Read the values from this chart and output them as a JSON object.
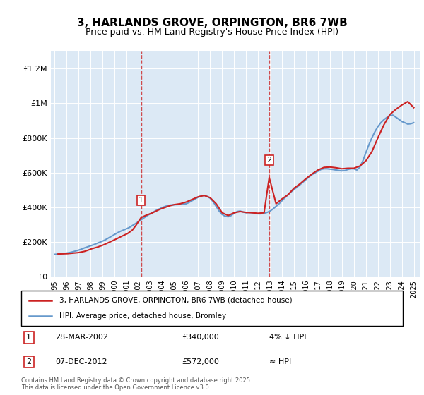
{
  "title": "3, HARLANDS GROVE, ORPINGTON, BR6 7WB",
  "subtitle": "Price paid vs. HM Land Registry's House Price Index (HPI)",
  "ylabel_ticks": [
    "£0",
    "£200K",
    "£400K",
    "£600K",
    "£800K",
    "£1M",
    "£1.2M"
  ],
  "ytick_values": [
    0,
    200000,
    400000,
    600000,
    800000,
    1000000,
    1200000
  ],
  "ylim": [
    0,
    1300000
  ],
  "xlim_start": 1995,
  "xlim_end": 2025.5,
  "background_color": "#dce9f5",
  "plot_bg_color": "#dce9f5",
  "hpi_color": "#6699cc",
  "price_color": "#cc2222",
  "marker1_x": 2002.23,
  "marker1_y": 340000,
  "marker2_x": 2012.93,
  "marker2_y": 572000,
  "legend_price_label": "3, HARLANDS GROVE, ORPINGTON, BR6 7WB (detached house)",
  "legend_hpi_label": "HPI: Average price, detached house, Bromley",
  "table_data": [
    {
      "num": "1",
      "date": "28-MAR-2002",
      "price": "£340,000",
      "note": "4% ↓ HPI"
    },
    {
      "num": "2",
      "date": "07-DEC-2012",
      "price": "£572,000",
      "note": "≈ HPI"
    }
  ],
  "footer": "Contains HM Land Registry data © Crown copyright and database right 2025.\nThis data is licensed under the Open Government Licence v3.0.",
  "hpi_data_x": [
    1995.0,
    1995.25,
    1995.5,
    1995.75,
    1996.0,
    1996.25,
    1996.5,
    1996.75,
    1997.0,
    1997.25,
    1997.5,
    1997.75,
    1998.0,
    1998.25,
    1998.5,
    1998.75,
    1999.0,
    1999.25,
    1999.5,
    1999.75,
    2000.0,
    2000.25,
    2000.5,
    2000.75,
    2001.0,
    2001.25,
    2001.5,
    2001.75,
    2002.0,
    2002.25,
    2002.5,
    2002.75,
    2003.0,
    2003.25,
    2003.5,
    2003.75,
    2004.0,
    2004.25,
    2004.5,
    2004.75,
    2005.0,
    2005.25,
    2005.5,
    2005.75,
    2006.0,
    2006.25,
    2006.5,
    2006.75,
    2007.0,
    2007.25,
    2007.5,
    2007.75,
    2008.0,
    2008.25,
    2008.5,
    2008.75,
    2009.0,
    2009.25,
    2009.5,
    2009.75,
    2010.0,
    2010.25,
    2010.5,
    2010.75,
    2011.0,
    2011.25,
    2011.5,
    2011.75,
    2012.0,
    2012.25,
    2012.5,
    2012.75,
    2013.0,
    2013.25,
    2013.5,
    2013.75,
    2014.0,
    2014.25,
    2014.5,
    2014.75,
    2015.0,
    2015.25,
    2015.5,
    2015.75,
    2016.0,
    2016.25,
    2016.5,
    2016.75,
    2017.0,
    2017.25,
    2017.5,
    2017.75,
    2018.0,
    2018.25,
    2018.5,
    2018.75,
    2019.0,
    2019.25,
    2019.5,
    2019.75,
    2020.0,
    2020.25,
    2020.5,
    2020.75,
    2021.0,
    2021.25,
    2021.5,
    2021.75,
    2022.0,
    2022.25,
    2022.5,
    2022.75,
    2023.0,
    2023.25,
    2023.5,
    2023.75,
    2024.0,
    2024.25,
    2024.5,
    2024.75,
    2025.0
  ],
  "hpi_data_y": [
    128000,
    129000,
    131000,
    133000,
    135000,
    138000,
    142000,
    147000,
    152000,
    158000,
    165000,
    171000,
    177000,
    183000,
    190000,
    197000,
    204000,
    212000,
    222000,
    232000,
    242000,
    252000,
    261000,
    268000,
    275000,
    283000,
    294000,
    305000,
    316000,
    328000,
    340000,
    352000,
    362000,
    372000,
    382000,
    390000,
    398000,
    405000,
    410000,
    413000,
    414000,
    415000,
    416000,
    418000,
    420000,
    428000,
    438000,
    448000,
    458000,
    465000,
    468000,
    462000,
    452000,
    432000,
    405000,
    378000,
    358000,
    348000,
    345000,
    352000,
    365000,
    375000,
    378000,
    372000,
    368000,
    370000,
    368000,
    365000,
    362000,
    362000,
    365000,
    370000,
    378000,
    390000,
    405000,
    420000,
    438000,
    455000,
    472000,
    488000,
    502000,
    516000,
    530000,
    545000,
    560000,
    575000,
    588000,
    598000,
    608000,
    618000,
    622000,
    622000,
    620000,
    618000,
    615000,
    612000,
    610000,
    612000,
    618000,
    622000,
    622000,
    615000,
    632000,
    668000,
    715000,
    760000,
    800000,
    835000,
    865000,
    888000,
    905000,
    918000,
    928000,
    932000,
    920000,
    908000,
    895000,
    888000,
    880000,
    882000,
    888000
  ],
  "price_data_x": [
    1995.3,
    1996.1,
    1997.0,
    1997.5,
    1997.8,
    1998.1,
    1998.6,
    1999.0,
    1999.4,
    1999.8,
    2000.2,
    2000.6,
    2001.1,
    2001.5,
    2001.8,
    2002.23,
    2002.7,
    2003.1,
    2003.5,
    2003.8,
    2004.2,
    2004.6,
    2005.0,
    2005.5,
    2006.0,
    2006.5,
    2007.0,
    2007.5,
    2008.0,
    2008.5,
    2009.0,
    2009.5,
    2010.0,
    2010.5,
    2011.0,
    2011.5,
    2012.0,
    2012.5,
    2012.93,
    2013.5,
    2014.0,
    2014.5,
    2015.0,
    2015.5,
    2016.0,
    2016.5,
    2017.0,
    2017.5,
    2018.0,
    2018.5,
    2019.0,
    2019.5,
    2020.0,
    2020.5,
    2021.0,
    2021.5,
    2022.0,
    2022.5,
    2023.0,
    2023.5,
    2024.0,
    2024.5,
    2025.0
  ],
  "price_data_y": [
    130000,
    132000,
    138000,
    145000,
    152000,
    160000,
    170000,
    180000,
    192000,
    205000,
    218000,
    232000,
    248000,
    268000,
    295000,
    340000,
    355000,
    365000,
    378000,
    388000,
    398000,
    408000,
    415000,
    420000,
    430000,
    445000,
    460000,
    468000,
    455000,
    420000,
    368000,
    352000,
    368000,
    375000,
    370000,
    368000,
    365000,
    368000,
    572000,
    420000,
    448000,
    472000,
    510000,
    535000,
    565000,
    592000,
    615000,
    630000,
    632000,
    628000,
    622000,
    625000,
    625000,
    638000,
    668000,
    720000,
    800000,
    875000,
    935000,
    965000,
    990000,
    1010000,
    975000
  ]
}
